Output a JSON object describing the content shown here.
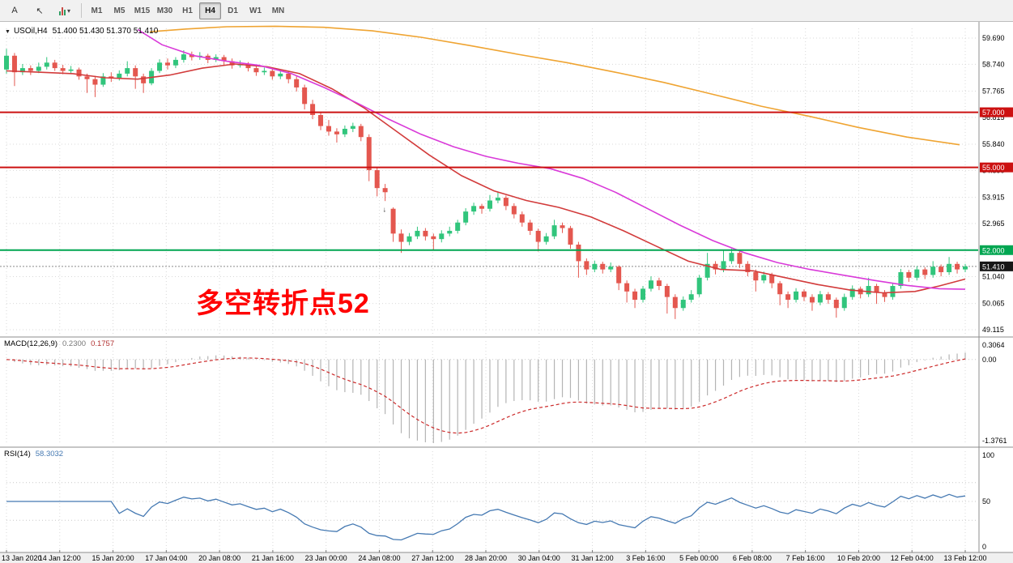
{
  "toolbar": {
    "buttons": [
      {
        "id": "annotation-tool",
        "label": "A"
      },
      {
        "id": "cursor-tool",
        "label": "↖"
      },
      {
        "id": "indicators-dropdown",
        "label": ""
      }
    ],
    "timeframes": [
      "M1",
      "M5",
      "M15",
      "M30",
      "H1",
      "H4",
      "D1",
      "W1",
      "MN"
    ],
    "active_timeframe": "H4"
  },
  "icons": {
    "collapse": "▼",
    "caret_down": "▾",
    "cursor": "↖",
    "marker_down": "↓"
  },
  "chart": {
    "symbol_title": "USOil,H4",
    "ohlc_text": "51.400 51.430 51.370 51.410",
    "annotation": {
      "text": "多空转折点52"
    }
  },
  "colors": {
    "up": "#31c57c",
    "down": "#e4574f",
    "ma_fast": "#d23b3b",
    "ma_medium": "#d93ad9",
    "ma_slow": "#efa432",
    "hline_red": "#cc1111",
    "hline_green": "#00a651",
    "last_price_line": "#8a8a8a",
    "last_price_box": "#161616",
    "macd_hist": "#b4b4b4",
    "macd_signal": "#cc2a2a",
    "rsi_line": "#4579b2",
    "annotation": "#ff0000",
    "grid": "#d9d9d9",
    "axis_line": "#8c8c8c"
  },
  "chart_data": {
    "type": "candlestick",
    "main": {
      "symbol": "USOil",
      "timeframe": "H4",
      "ohlc_display": {
        "open": "51.400",
        "high": "51.430",
        "low": "51.370",
        "close": "51.410"
      },
      "price_axis_labels": [
        59.69,
        58.74,
        57.765,
        56.815,
        55.84,
        54.89,
        53.915,
        52.965,
        51.99,
        51.04,
        50.065,
        49.115
      ],
      "hlines": [
        {
          "price": 57.0,
          "label": "57.000",
          "color_key": "hline_red"
        },
        {
          "price": 55.0,
          "label": "55.000",
          "color_key": "hline_red"
        },
        {
          "price": 52.0,
          "label": "52.000",
          "color_key": "hline_green"
        }
      ],
      "last_price": {
        "value": 51.41,
        "label": "51.410"
      },
      "marker": {
        "candle_index": 47,
        "price": 53.62,
        "glyph": "↓"
      },
      "candles": [
        [
          58.55,
          59.3,
          58.4,
          59.05
        ],
        [
          59.05,
          59.15,
          57.95,
          58.45
        ],
        [
          58.45,
          58.75,
          58.35,
          58.6
        ],
        [
          58.6,
          58.7,
          58.35,
          58.5
        ],
        [
          58.5,
          58.8,
          58.42,
          58.65
        ],
        [
          58.65,
          59.0,
          58.55,
          58.8
        ],
        [
          58.8,
          58.9,
          58.5,
          58.6
        ],
        [
          58.6,
          58.72,
          58.38,
          58.5
        ],
        [
          58.5,
          58.68,
          58.4,
          58.55
        ],
        [
          58.55,
          58.62,
          58.18,
          58.3
        ],
        [
          58.3,
          58.4,
          57.7,
          58.2
        ],
        [
          58.2,
          58.32,
          57.55,
          58.0
        ],
        [
          58.0,
          58.42,
          57.92,
          58.3
        ],
        [
          58.3,
          58.45,
          58.1,
          58.25
        ],
        [
          58.25,
          58.52,
          58.15,
          58.4
        ],
        [
          58.4,
          58.85,
          58.3,
          58.6
        ],
        [
          58.6,
          58.7,
          57.85,
          58.3
        ],
        [
          58.3,
          58.4,
          57.7,
          58.05
        ],
        [
          58.05,
          58.6,
          57.98,
          58.5
        ],
        [
          58.5,
          58.92,
          58.42,
          58.8
        ],
        [
          58.8,
          58.95,
          58.55,
          58.7
        ],
        [
          58.7,
          59.0,
          58.6,
          58.9
        ],
        [
          58.9,
          59.25,
          58.8,
          59.1
        ],
        [
          59.1,
          59.2,
          58.88,
          59.0
        ],
        [
          59.0,
          59.18,
          58.9,
          59.05
        ],
        [
          59.05,
          59.12,
          58.78,
          58.9
        ],
        [
          58.9,
          59.1,
          58.82,
          59.0
        ],
        [
          59.0,
          59.08,
          58.72,
          58.85
        ],
        [
          58.85,
          58.95,
          58.58,
          58.7
        ],
        [
          58.7,
          58.88,
          58.62,
          58.75
        ],
        [
          58.75,
          58.82,
          58.48,
          58.6
        ],
        [
          58.6,
          58.7,
          58.32,
          58.45
        ],
        [
          58.45,
          58.62,
          58.35,
          58.5
        ],
        [
          58.5,
          58.58,
          58.18,
          58.3
        ],
        [
          58.3,
          58.52,
          58.2,
          58.4
        ],
        [
          58.4,
          58.48,
          58.05,
          58.2
        ],
        [
          58.2,
          58.3,
          57.75,
          57.9
        ],
        [
          57.9,
          58.0,
          57.1,
          57.3
        ],
        [
          57.3,
          57.45,
          56.75,
          56.9
        ],
        [
          56.9,
          57.0,
          56.35,
          56.5
        ],
        [
          56.5,
          56.72,
          56.15,
          56.3
        ],
        [
          56.3,
          56.42,
          55.9,
          56.2
        ],
        [
          56.2,
          56.52,
          56.1,
          56.4
        ],
        [
          56.4,
          56.62,
          56.28,
          56.5
        ],
        [
          56.5,
          56.58,
          55.95,
          56.1
        ],
        [
          56.1,
          56.2,
          54.5,
          54.9
        ],
        [
          54.9,
          55.0,
          53.95,
          54.25
        ],
        [
          54.25,
          54.4,
          53.78,
          54.1
        ],
        [
          53.5,
          53.55,
          52.3,
          52.6
        ],
        [
          52.6,
          52.75,
          51.9,
          52.3
        ],
        [
          52.3,
          52.62,
          52.18,
          52.5
        ],
        [
          52.5,
          52.85,
          52.4,
          52.7
        ],
        [
          52.7,
          52.8,
          52.35,
          52.5
        ],
        [
          52.5,
          52.6,
          52.0,
          52.4
        ],
        [
          52.4,
          52.72,
          52.28,
          52.6
        ],
        [
          52.6,
          52.85,
          52.5,
          52.7
        ],
        [
          52.7,
          53.1,
          52.6,
          53.0
        ],
        [
          53.0,
          53.52,
          52.9,
          53.4
        ],
        [
          53.4,
          53.72,
          53.28,
          53.6
        ],
        [
          53.6,
          53.68,
          53.32,
          53.5
        ],
        [
          53.5,
          54.0,
          53.4,
          53.8
        ],
        [
          53.8,
          54.1,
          53.7,
          53.9
        ],
        [
          53.9,
          53.98,
          53.45,
          53.6
        ],
        [
          53.6,
          53.7,
          53.15,
          53.3
        ],
        [
          53.3,
          53.4,
          52.85,
          53.0
        ],
        [
          53.0,
          53.1,
          52.55,
          52.7
        ],
        [
          52.7,
          52.78,
          51.95,
          52.3
        ],
        [
          52.3,
          52.62,
          52.2,
          52.5
        ],
        [
          52.5,
          53.1,
          52.4,
          52.9
        ],
        [
          52.9,
          53.0,
          52.62,
          52.8
        ],
        [
          52.8,
          52.88,
          52.05,
          52.2
        ],
        [
          52.2,
          52.3,
          51.0,
          51.6
        ],
        [
          51.6,
          51.7,
          51.1,
          51.3
        ],
        [
          51.3,
          51.62,
          51.2,
          51.5
        ],
        [
          51.5,
          51.58,
          51.15,
          51.3
        ],
        [
          51.3,
          51.55,
          51.2,
          51.4
        ],
        [
          51.4,
          51.45,
          50.55,
          50.8
        ],
        [
          50.8,
          50.9,
          50.1,
          50.5
        ],
        [
          50.5,
          50.6,
          49.9,
          50.2
        ],
        [
          50.2,
          50.7,
          50.1,
          50.6
        ],
        [
          50.6,
          51.05,
          50.5,
          50.9
        ],
        [
          50.9,
          51.0,
          50.55,
          50.7
        ],
        [
          50.7,
          50.78,
          49.7,
          50.3
        ],
        [
          50.3,
          50.4,
          49.5,
          49.9
        ],
        [
          49.9,
          50.32,
          49.8,
          50.2
        ],
        [
          50.2,
          50.55,
          50.1,
          50.4
        ],
        [
          50.4,
          51.1,
          50.3,
          51.0
        ],
        [
          51.0,
          51.9,
          50.9,
          51.5
        ],
        [
          51.5,
          51.6,
          51.12,
          51.3
        ],
        [
          51.3,
          52.0,
          51.2,
          51.6
        ],
        [
          51.6,
          52.05,
          51.5,
          51.9
        ],
        [
          51.9,
          51.98,
          51.35,
          51.5
        ],
        [
          51.5,
          51.6,
          51.05,
          51.2
        ],
        [
          51.2,
          51.3,
          50.5,
          50.9
        ],
        [
          50.9,
          51.22,
          50.8,
          51.1
        ],
        [
          51.1,
          51.18,
          50.62,
          50.8
        ],
        [
          50.8,
          50.88,
          50.0,
          50.4
        ],
        [
          50.4,
          50.5,
          49.9,
          50.2
        ],
        [
          50.2,
          50.62,
          50.1,
          50.5
        ],
        [
          50.5,
          50.58,
          50.15,
          50.3
        ],
        [
          50.3,
          50.4,
          49.8,
          50.1
        ],
        [
          50.1,
          50.52,
          50.0,
          50.4
        ],
        [
          50.4,
          50.48,
          50.05,
          50.2
        ],
        [
          50.2,
          50.28,
          49.55,
          49.9
        ],
        [
          49.9,
          50.42,
          49.8,
          50.3
        ],
        [
          50.3,
          50.72,
          50.2,
          50.6
        ],
        [
          50.6,
          50.68,
          50.25,
          50.4
        ],
        [
          50.4,
          51.0,
          50.3,
          50.7
        ],
        [
          50.7,
          50.78,
          50.05,
          50.45
        ],
        [
          50.45,
          50.55,
          50.12,
          50.3
        ],
        [
          50.3,
          50.82,
          50.2,
          50.7
        ],
        [
          50.7,
          51.32,
          50.6,
          51.2
        ],
        [
          51.2,
          51.28,
          50.85,
          51.0
        ],
        [
          51.0,
          51.42,
          50.9,
          51.3
        ],
        [
          51.3,
          51.38,
          50.95,
          51.1
        ],
        [
          51.1,
          51.6,
          51.0,
          51.4
        ],
        [
          51.4,
          51.48,
          51.05,
          51.2
        ],
        [
          51.2,
          51.75,
          51.1,
          51.5
        ],
        [
          51.5,
          51.58,
          51.15,
          51.3
        ],
        [
          51.3,
          51.5,
          51.2,
          51.41
        ]
      ],
      "ma_lines": [
        {
          "name": "ma-fast-red",
          "color_key": "ma_fast",
          "points": [
            [
              8,
              58.5
            ],
            [
              50,
              58.45
            ],
            [
              90,
              58.4
            ],
            [
              130,
              58.25
            ],
            [
              170,
              58.2
            ],
            [
              210,
              58.35
            ],
            [
              250,
              58.6
            ],
            [
              290,
              58.75
            ],
            [
              330,
              58.65
            ],
            [
              370,
              58.4
            ],
            [
              410,
              57.85
            ],
            [
              450,
              57.15
            ],
            [
              490,
              56.3
            ],
            [
              530,
              55.45
            ],
            [
              570,
              54.7
            ],
            [
              610,
              54.15
            ],
            [
              650,
              53.8
            ],
            [
              690,
              53.55
            ],
            [
              730,
              53.2
            ],
            [
              770,
              52.7
            ],
            [
              810,
              52.15
            ],
            [
              850,
              51.6
            ],
            [
              890,
              51.3
            ],
            [
              930,
              51.25
            ],
            [
              970,
              51.0
            ],
            [
              1010,
              50.75
            ],
            [
              1050,
              50.55
            ],
            [
              1090,
              50.45
            ],
            [
              1130,
              50.5
            ],
            [
              1160,
              50.7
            ],
            [
              1192,
              50.95
            ]
          ]
        },
        {
          "name": "ma-medium-magenta",
          "color_key": "ma_medium",
          "points": [
            [
              170,
              60.0
            ],
            [
              200,
              59.45
            ],
            [
              240,
              59.05
            ],
            [
              280,
              58.85
            ],
            [
              320,
              58.7
            ],
            [
              360,
              58.4
            ],
            [
              400,
              57.9
            ],
            [
              440,
              57.35
            ],
            [
              480,
              56.75
            ],
            [
              520,
              56.2
            ],
            [
              560,
              55.75
            ],
            [
              600,
              55.4
            ],
            [
              640,
              55.15
            ],
            [
              680,
              54.95
            ],
            [
              720,
              54.6
            ],
            [
              760,
              54.1
            ],
            [
              800,
              53.5
            ],
            [
              840,
              52.9
            ],
            [
              880,
              52.35
            ],
            [
              920,
              51.9
            ],
            [
              960,
              51.55
            ],
            [
              1000,
              51.3
            ],
            [
              1040,
              51.1
            ],
            [
              1080,
              50.9
            ],
            [
              1120,
              50.72
            ],
            [
              1160,
              50.6
            ],
            [
              1192,
              50.58
            ]
          ]
        },
        {
          "name": "ma-slow-orange",
          "color_key": "ma_slow",
          "points": [
            [
              185,
              59.92
            ],
            [
              230,
              60.02
            ],
            [
              280,
              60.1
            ],
            [
              340,
              60.12
            ],
            [
              400,
              60.08
            ],
            [
              460,
              59.95
            ],
            [
              520,
              59.72
            ],
            [
              580,
              59.42
            ],
            [
              640,
              59.1
            ],
            [
              700,
              58.8
            ],
            [
              760,
              58.45
            ],
            [
              820,
              58.08
            ],
            [
              880,
              57.65
            ],
            [
              940,
              57.22
            ],
            [
              1000,
              56.85
            ],
            [
              1060,
              56.45
            ],
            [
              1120,
              56.1
            ],
            [
              1185,
              55.82
            ]
          ]
        }
      ]
    },
    "macd": {
      "type": "macd-histogram",
      "label": "MACD(12,26,9)",
      "params": [
        12,
        26,
        9
      ],
      "values_text": [
        "0.2300",
        "0.1757"
      ],
      "axis_labels": [
        "0.3064",
        "0.00",
        "-1.3761"
      ]
    },
    "rsi": {
      "type": "line",
      "label": "RSI(14)",
      "period": 14,
      "value_text": "58.3032",
      "axis_labels": [
        "100",
        "50",
        "0"
      ],
      "levels": [
        70,
        50,
        30
      ]
    },
    "time_axis": [
      "13 Jan 2020",
      "14 Jan 12:00",
      "15 Jan 20:00",
      "17 Jan 04:00",
      "20 Jan 08:00",
      "21 Jan 16:00",
      "23 Jan 00:00",
      "24 Jan 08:00",
      "27 Jan 12:00",
      "28 Jan 20:00",
      "30 Jan 04:00",
      "31 Jan 12:00",
      "3 Feb 16:00",
      "5 Feb 00:00",
      "6 Feb 08:00",
      "7 Feb 16:00",
      "10 Feb 20:00",
      "12 Feb 04:00",
      "13 Feb 12:00"
    ]
  }
}
